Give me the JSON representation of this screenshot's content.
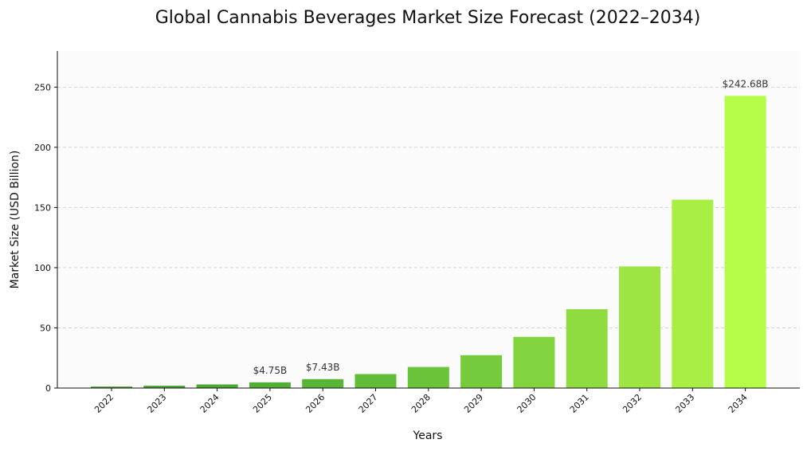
{
  "chart_data": {
    "type": "bar",
    "title": "Global Cannabis Beverages Market Size Forecast (2022–2034)",
    "xlabel": "Years",
    "ylabel": "Market Size (USD Billion)",
    "categories": [
      "2022",
      "2023",
      "2024",
      "2025",
      "2026",
      "2027",
      "2028",
      "2029",
      "2030",
      "2031",
      "2032",
      "2033",
      "2034"
    ],
    "values": [
      1.2,
      1.9,
      3.0,
      4.75,
      7.43,
      11.6,
      17.5,
      27.3,
      42.5,
      65.5,
      101.0,
      156.5,
      242.68
    ],
    "colors": [
      "#3d9b2c",
      "#44a42e",
      "#4aa930",
      "#51af33",
      "#58b535",
      "#61bc37",
      "#6ac33a",
      "#76cb3c",
      "#82d43e",
      "#8fdc40",
      "#9ce542",
      "#a9ee44",
      "#b5fc46"
    ],
    "data_labels": {
      "2025": "$4.75B",
      "2026": "$7.43B",
      "2034": "$242.68B"
    },
    "ylim": [
      0,
      280
    ],
    "yticks": [
      0,
      50,
      100,
      150,
      200,
      250
    ],
    "grid": true,
    "grid_axis": "y",
    "background": "#fbfbfb"
  }
}
